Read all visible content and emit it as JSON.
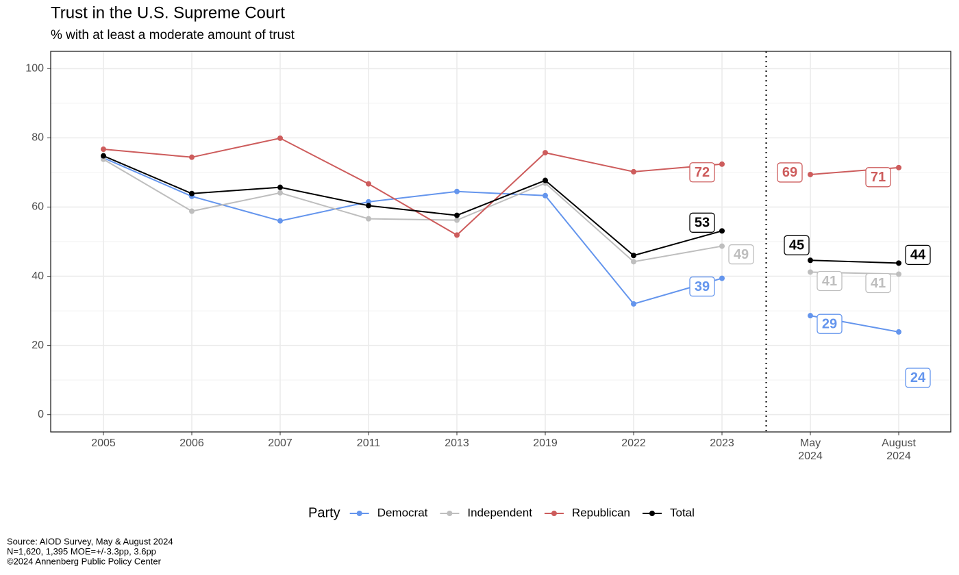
{
  "chart_data": {
    "type": "line",
    "title": "Trust in the U.S. Supreme Court",
    "subtitle": "% with at least a moderate amount of trust",
    "categories": [
      "2005",
      "2006",
      "2007",
      "2011",
      "2013",
      "2019",
      "2022",
      "2023",
      "May\n2024",
      "August\n2024"
    ],
    "segment_break_after": "2023",
    "series": [
      {
        "name": "Democrat",
        "color": "#6495ED",
        "values": [
          74.2,
          63.1,
          56.0,
          61.5,
          64.5,
          63.3,
          32.0,
          39.4,
          28.6,
          23.9
        ],
        "value_labels": [
          null,
          null,
          null,
          null,
          null,
          null,
          null,
          "39",
          "29",
          "24"
        ]
      },
      {
        "name": "Independent",
        "color": "#BEBEBE",
        "values": [
          73.8,
          58.8,
          64.1,
          56.6,
          56.2,
          66.9,
          44.2,
          48.7,
          41.2,
          40.6
        ],
        "value_labels": [
          null,
          null,
          null,
          null,
          null,
          null,
          null,
          "49",
          "41",
          "41"
        ]
      },
      {
        "name": "Republican",
        "color": "#CD5C5C",
        "values": [
          76.7,
          74.4,
          79.9,
          66.7,
          51.9,
          75.7,
          70.2,
          72.4,
          69.4,
          71.4
        ],
        "value_labels": [
          null,
          null,
          null,
          null,
          null,
          null,
          null,
          "72",
          "69",
          "71"
        ]
      },
      {
        "name": "Total",
        "color": "#000000",
        "values": [
          74.8,
          63.9,
          65.7,
          60.4,
          57.6,
          67.7,
          46.0,
          53.1,
          44.6,
          43.8
        ],
        "value_labels": [
          null,
          null,
          null,
          null,
          null,
          null,
          null,
          "53",
          "45",
          "44"
        ]
      }
    ],
    "legend_title": "Party",
    "legend_position": "bottom",
    "ylim": [
      -5,
      105
    ],
    "yticks": [
      0,
      20,
      40,
      60,
      80,
      100
    ],
    "grid": true,
    "caption_lines": [
      "Source: AIOD Survey, May & August 2024",
      "N=1,620, 1,395 MOE=+/-3.3pp, 3.6pp",
      "©2024 Annenberg Public Policy Center"
    ]
  }
}
